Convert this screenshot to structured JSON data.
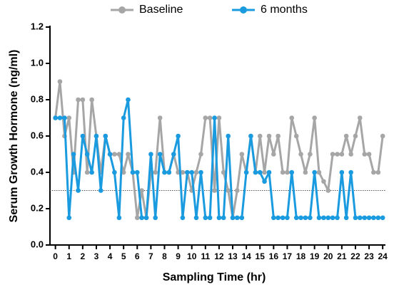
{
  "chart_data": {
    "type": "line",
    "xlabel": "Sampling Time (hr)",
    "ylabel": "Serum Growth Hormone (ng/ml)",
    "x": [
      0,
      0.33,
      0.67,
      1,
      1.33,
      1.67,
      2,
      2.33,
      2.67,
      3,
      3.33,
      3.67,
      4,
      4.33,
      4.67,
      5,
      5.33,
      5.67,
      6,
      6.33,
      6.67,
      7,
      7.33,
      7.67,
      8,
      8.33,
      8.67,
      9,
      9.33,
      9.67,
      10,
      10.33,
      10.67,
      11,
      11.33,
      11.67,
      12,
      12.33,
      12.67,
      13,
      13.33,
      13.67,
      14,
      14.33,
      14.67,
      15,
      15.33,
      15.67,
      16,
      16.33,
      16.67,
      17,
      17.33,
      17.67,
      18,
      18.33,
      18.67,
      19,
      19.33,
      19.67,
      20,
      20.33,
      20.67,
      21,
      21.33,
      21.67,
      22,
      22.33,
      22.67,
      23,
      23.33,
      23.67,
      24
    ],
    "series": [
      {
        "name": "Baseline",
        "color": "#a6a6a6",
        "values": [
          0.7,
          0.9,
          0.6,
          0.7,
          0.4,
          0.8,
          0.8,
          0.4,
          0.8,
          0.6,
          0.4,
          0.6,
          0.5,
          0.5,
          0.5,
          0.4,
          0.5,
          0.4,
          0.15,
          0.3,
          0.15,
          0.4,
          0.4,
          0.7,
          0.4,
          0.4,
          0.5,
          0.4,
          0.4,
          0.4,
          0.3,
          0.4,
          0.5,
          0.7,
          0.7,
          0.3,
          0.7,
          0.4,
          0.3,
          0.15,
          0.3,
          0.5,
          0.4,
          0.6,
          0.4,
          0.6,
          0.4,
          0.6,
          0.5,
          0.6,
          0.4,
          0.4,
          0.7,
          0.6,
          0.5,
          0.4,
          0.5,
          0.7,
          0.4,
          0.35,
          0.3,
          0.5,
          0.5,
          0.5,
          0.6,
          0.5,
          0.6,
          0.7,
          0.5,
          0.5,
          0.4,
          0.4,
          0.6
        ]
      },
      {
        "name": "6 months",
        "color": "#1a9be0",
        "values": [
          0.7,
          0.7,
          0.7,
          0.15,
          0.5,
          0.3,
          0.6,
          0.5,
          0.4,
          0.6,
          0.3,
          0.6,
          0.5,
          0.4,
          0.15,
          0.7,
          0.8,
          0.4,
          0.4,
          0.15,
          0.15,
          0.5,
          0.15,
          0.5,
          0.4,
          0.4,
          0.5,
          0.6,
          0.15,
          0.4,
          0.4,
          0.15,
          0.4,
          0.15,
          0.15,
          0.7,
          0.15,
          0.15,
          0.6,
          0.15,
          0.15,
          0.15,
          0.4,
          0.6,
          0.4,
          0.4,
          0.35,
          0.4,
          0.15,
          0.15,
          0.15,
          0.15,
          0.4,
          0.15,
          0.15,
          0.15,
          0.15,
          0.4,
          0.15,
          0.15,
          0.15,
          0.15,
          0.15,
          0.4,
          0.15,
          0.4,
          0.15,
          0.15,
          0.15,
          0.15,
          0.15,
          0.15,
          0.15
        ]
      }
    ],
    "reference_line": 0.3,
    "xlim": [
      -0.4,
      24.2
    ],
    "xticks": [
      0,
      1,
      2,
      3,
      4,
      5,
      6,
      7,
      8,
      9,
      10,
      11,
      12,
      13,
      14,
      15,
      16,
      17,
      18,
      19,
      20,
      21,
      22,
      23,
      24
    ],
    "ylim": [
      0,
      1.2
    ],
    "yticks": [
      {
        "value": 0,
        "label": "0.0"
      },
      0.2,
      0.4,
      0.6,
      0.8,
      {
        "value": 1,
        "label": "1.0"
      },
      1.2
    ],
    "legend": "top"
  }
}
